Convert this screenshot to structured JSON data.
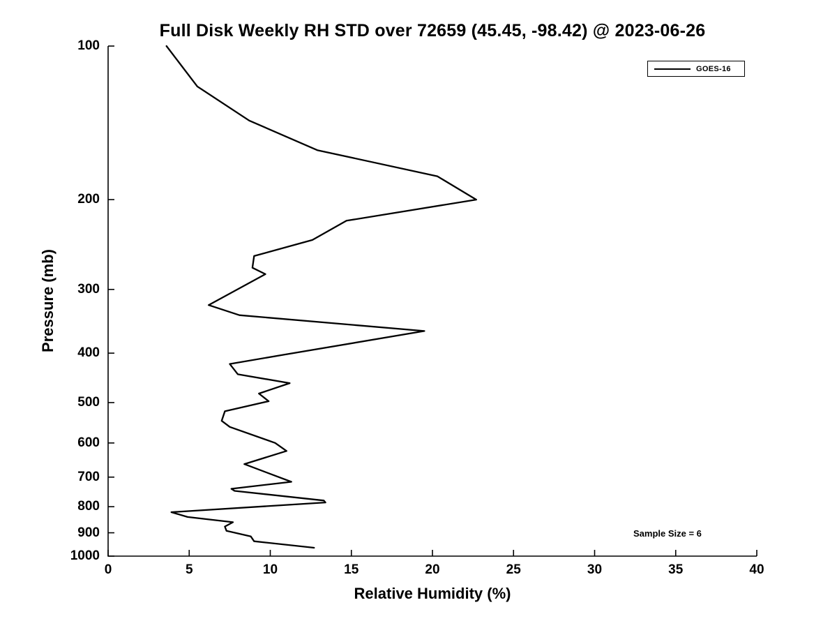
{
  "title": "Full Disk Weekly RH STD over 72659 (45.45, -98.42) @ 2023-06-26",
  "annotation": "Sample Size = 6",
  "legend": {
    "label": "GOES-16",
    "position": "top-right"
  },
  "chart_data": {
    "type": "line",
    "title": "Full Disk Weekly RH STD over 72659 (45.45, -98.42) @ 2023-06-26",
    "xlabel": "Relative Humidity (%)",
    "ylabel": "Pressure (mb)",
    "x_range": [
      0,
      40
    ],
    "y_range": [
      100,
      1000
    ],
    "y_scale": "log",
    "y_inverted": true,
    "grid": false,
    "x_ticks": [
      0,
      5,
      10,
      15,
      20,
      25,
      30,
      35,
      40
    ],
    "y_ticks": [
      100,
      200,
      300,
      400,
      500,
      600,
      700,
      800,
      900,
      1000
    ],
    "line_color": "#000000",
    "series": [
      {
        "name": "GOES-16",
        "color": "#000000",
        "points": [
          {
            "p": 100,
            "rh": 3.6
          },
          {
            "p": 120,
            "rh": 5.5
          },
          {
            "p": 140,
            "rh": 8.7
          },
          {
            "p": 160,
            "rh": 12.9
          },
          {
            "p": 180,
            "rh": 20.3
          },
          {
            "p": 200,
            "rh": 22.7
          },
          {
            "p": 220,
            "rh": 14.7
          },
          {
            "p": 240,
            "rh": 12.6
          },
          {
            "p": 258,
            "rh": 9.0
          },
          {
            "p": 272,
            "rh": 8.9
          },
          {
            "p": 280,
            "rh": 9.7
          },
          {
            "p": 322,
            "rh": 6.2
          },
          {
            "p": 337,
            "rh": 8.1
          },
          {
            "p": 362,
            "rh": 19.5
          },
          {
            "p": 403,
            "rh": 10.8
          },
          {
            "p": 420,
            "rh": 7.5
          },
          {
            "p": 440,
            "rh": 8.0
          },
          {
            "p": 458,
            "rh": 11.2
          },
          {
            "p": 480,
            "rh": 9.3
          },
          {
            "p": 497,
            "rh": 9.9
          },
          {
            "p": 520,
            "rh": 7.2
          },
          {
            "p": 543,
            "rh": 7.0
          },
          {
            "p": 558,
            "rh": 7.5
          },
          {
            "p": 600,
            "rh": 10.3
          },
          {
            "p": 622,
            "rh": 11.0
          },
          {
            "p": 660,
            "rh": 8.4
          },
          {
            "p": 715,
            "rh": 11.3
          },
          {
            "p": 738,
            "rh": 7.6
          },
          {
            "p": 745,
            "rh": 7.8
          },
          {
            "p": 778,
            "rh": 13.3
          },
          {
            "p": 785,
            "rh": 13.4
          },
          {
            "p": 820,
            "rh": 3.9
          },
          {
            "p": 838,
            "rh": 4.9
          },
          {
            "p": 858,
            "rh": 7.7
          },
          {
            "p": 875,
            "rh": 7.2
          },
          {
            "p": 892,
            "rh": 7.3
          },
          {
            "p": 915,
            "rh": 8.8
          },
          {
            "p": 935,
            "rh": 9.0
          },
          {
            "p": 963,
            "rh": 12.7
          }
        ]
      }
    ]
  }
}
